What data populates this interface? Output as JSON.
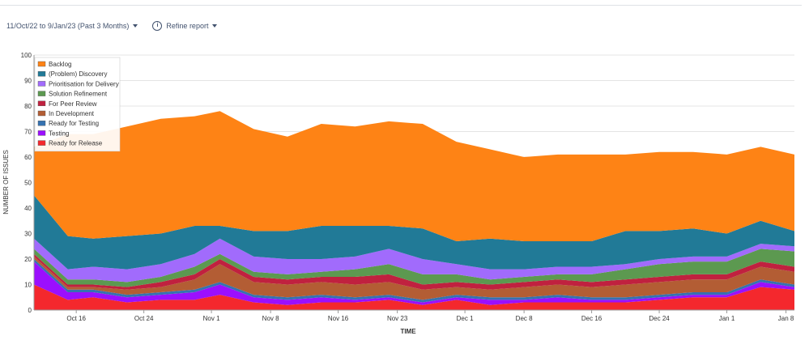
{
  "toolbar": {
    "date_range": "11/Oct/22 to 9/Jan/23 (Past 3 Months)",
    "refine_label": "Refine report"
  },
  "chart_data": {
    "type": "area",
    "stacked": true,
    "xlabel": "TIME",
    "ylabel": "NUMBER OF ISSUES",
    "ylim": [
      0,
      100
    ],
    "yticks": [
      0,
      10,
      20,
      30,
      40,
      50,
      60,
      70,
      80,
      90,
      100
    ],
    "x_tick_labels": [
      "Oct 16",
      "Oct 24",
      "Nov 1",
      "Nov 8",
      "Nov 16",
      "Nov 23",
      "Dec 1",
      "Dec 8",
      "Dec 16",
      "Dec 24",
      "Jan 1",
      "Jan 8"
    ],
    "x_tick_dates": [
      "2022-10-16",
      "2022-10-24",
      "2022-11-01",
      "2022-11-08",
      "2022-11-16",
      "2022-11-23",
      "2022-12-01",
      "2022-12-08",
      "2022-12-16",
      "2022-12-24",
      "2023-01-01",
      "2023-01-08"
    ],
    "x": [
      "2022-10-11",
      "2022-10-15",
      "2022-10-18",
      "2022-10-22",
      "2022-10-26",
      "2022-10-30",
      "2022-11-02",
      "2022-11-06",
      "2022-11-10",
      "2022-11-14",
      "2022-11-18",
      "2022-11-22",
      "2022-11-26",
      "2022-11-30",
      "2022-12-04",
      "2022-12-08",
      "2022-12-12",
      "2022-12-16",
      "2022-12-20",
      "2022-12-24",
      "2022-12-28",
      "2023-01-01",
      "2023-01-05",
      "2023-01-09"
    ],
    "grid": true,
    "legend_position": "top-left",
    "series": [
      {
        "name": "Ready for Release",
        "color": "#f4282d",
        "values": [
          10,
          4,
          5,
          3,
          4,
          4,
          6,
          3,
          2,
          3,
          3,
          4,
          2,
          4,
          2,
          3,
          3,
          3,
          3,
          4,
          5,
          5,
          9,
          8
        ]
      },
      {
        "name": "Testing",
        "color": "#9b0ffe",
        "values": [
          9,
          3,
          2,
          2,
          2,
          3,
          4,
          2,
          2,
          2,
          1,
          1,
          1,
          1,
          2,
          1,
          2,
          1,
          1,
          1,
          1,
          1,
          2,
          1
        ]
      },
      {
        "name": "Ready for Testing",
        "color": "#3572b0",
        "values": [
          1,
          1,
          1,
          1,
          1,
          1,
          1,
          1,
          1,
          1,
          1,
          1,
          1,
          1,
          1,
          1,
          1,
          1,
          1,
          1,
          1,
          1,
          1,
          1
        ]
      },
      {
        "name": "In Development",
        "color": "#b35d34",
        "values": [
          1,
          1,
          1,
          2,
          2,
          4,
          7,
          5,
          5,
          5,
          5,
          5,
          4,
          3,
          3,
          4,
          4,
          4,
          5,
          5,
          5,
          5,
          5,
          5
        ]
      },
      {
        "name": "For Peer Review",
        "color": "#c0213f",
        "values": [
          1,
          1,
          1,
          1,
          2,
          2,
          2,
          2,
          2,
          2,
          3,
          3,
          2,
          2,
          2,
          2,
          2,
          2,
          2,
          2,
          2,
          2,
          2,
          2
        ]
      },
      {
        "name": "Solution Refinement",
        "color": "#5c9950",
        "values": [
          2,
          2,
          2,
          2,
          2,
          3,
          2,
          2,
          2,
          2,
          3,
          4,
          4,
          3,
          2,
          2,
          2,
          3,
          4,
          5,
          5,
          5,
          5,
          6
        ]
      },
      {
        "name": "Prioritisation for Delivery",
        "color": "#a16bfc",
        "values": [
          4,
          4,
          5,
          5,
          5,
          5,
          6,
          6,
          6,
          5,
          5,
          6,
          6,
          4,
          4,
          3,
          3,
          3,
          2,
          2,
          2,
          2,
          2,
          2
        ]
      },
      {
        "name": "(Problem) Discovery",
        "color": "#217a97",
        "values": [
          17,
          13,
          11,
          13,
          12,
          11,
          5,
          10,
          11,
          13,
          12,
          9,
          12,
          9,
          12,
          11,
          10,
          10,
          13,
          11,
          11,
          9,
          9,
          6
        ]
      },
      {
        "name": "Backlog",
        "color": "#fe8315",
        "values": [
          19,
          40,
          41,
          43,
          45,
          43,
          45,
          40,
          37,
          40,
          39,
          41,
          41,
          39,
          35,
          33,
          34,
          34,
          30,
          31,
          30,
          31,
          29,
          30
        ]
      }
    ]
  }
}
